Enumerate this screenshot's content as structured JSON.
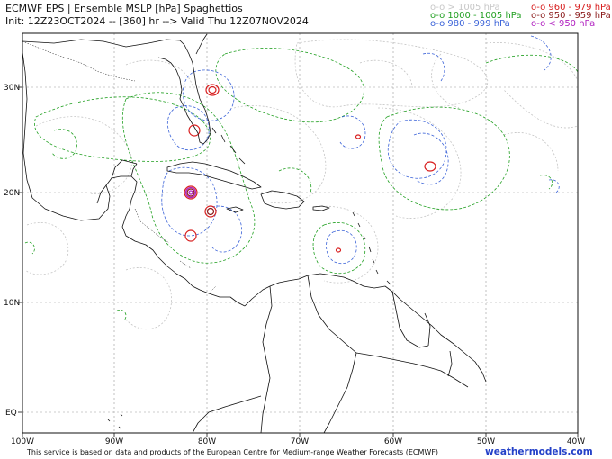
{
  "header": {
    "line1": "ECMWF EPS | Ensemble MSLP [hPa] Spaghettios",
    "line2": "Init: 12Z23OCT2024 -- [360] hr --> Valid Thu 12Z07NOV2024"
  },
  "legend": [
    {
      "label": "o-o > 1005 hPa",
      "color": "#c8c8c8"
    },
    {
      "label": "o-o 1000 - 1005 hPa",
      "color": "#22a022"
    },
    {
      "label": "o-o 980 - 999 hPa",
      "color": "#3a62d8"
    },
    {
      "label": "o-o 960 - 979 hPa",
      "color": "#d82020"
    },
    {
      "label": "o-o 950 - 959 hPa",
      "color": "#8a1a1a"
    },
    {
      "label": "o-o < 950 hPa",
      "color": "#b020c0"
    }
  ],
  "axes": {
    "lat_labels": [
      "30N",
      "20N",
      "10N",
      "EQ"
    ],
    "lon_labels": [
      "100W",
      "90W",
      "80W",
      "70W",
      "60W",
      "50W",
      "40W"
    ]
  },
  "footer": "This service is based on data and products of the European Centre for Medium-range Weather Forecasts (ECMWF)",
  "site": "weathermodels.com"
}
